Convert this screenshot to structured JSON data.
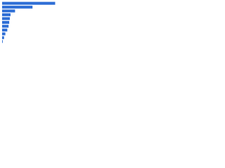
{
  "chart_data": {
    "type": "bar",
    "orientation": "horizontal",
    "categories": [
      null,
      null,
      null,
      null,
      null,
      null,
      null,
      null,
      null,
      null,
      null
    ],
    "values": [
      82,
      47,
      20,
      13,
      12,
      11,
      10,
      8,
      5,
      3,
      1
    ],
    "color": "#2f6fd6",
    "xlim": [
      0,
      100
    ]
  }
}
